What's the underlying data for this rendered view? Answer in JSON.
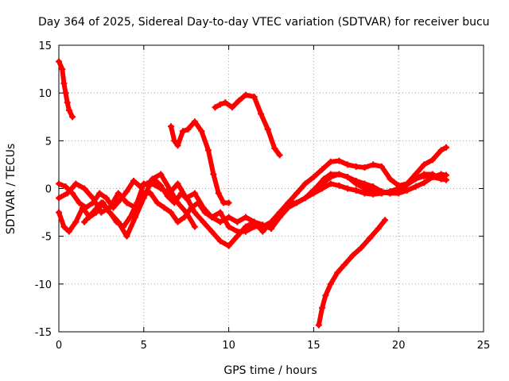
{
  "chart_data": {
    "type": "scatter",
    "title": "Day 364 of 2025, Sidereal Day-to-day VTEC variation (SDTVAR) for receiver bucu",
    "xlabel": "GPS time / hours",
    "ylabel": "SDTVAR / TECUs",
    "xlim": [
      0,
      25
    ],
    "ylim": [
      -15,
      15
    ],
    "xticks": [
      0,
      5,
      10,
      15,
      20,
      25
    ],
    "yticks": [
      -15,
      -10,
      -5,
      0,
      5,
      10,
      15
    ],
    "xtick_labels": [
      "0",
      "5",
      "10",
      "15",
      "20",
      "25"
    ],
    "ytick_labels": [
      "-15",
      "-10",
      "-5",
      "0",
      "5",
      "10",
      "15"
    ],
    "grid": true,
    "marker": "+",
    "color": "#ff0000",
    "series": [
      {
        "name": "trace-1",
        "x": [
          0.0,
          0.2,
          0.3,
          0.4,
          0.5,
          0.6,
          0.8
        ],
        "y": [
          13.3,
          12.5,
          11.0,
          10.0,
          9.0,
          8.2,
          7.5
        ]
      },
      {
        "name": "trace-2",
        "x": [
          6.6,
          6.8,
          7.0,
          7.3,
          7.6,
          8.0,
          8.4,
          8.8,
          9.1,
          9.4,
          9.7,
          10.0
        ],
        "y": [
          6.5,
          5.0,
          4.5,
          6.0,
          6.2,
          7.0,
          6.0,
          4.0,
          1.5,
          -0.5,
          -1.5,
          -1.5
        ]
      },
      {
        "name": "trace-3",
        "x": [
          9.2,
          9.5,
          9.8,
          10.2,
          10.6,
          11.0,
          11.5,
          11.9,
          12.3,
          12.7,
          13.0
        ],
        "y": [
          8.5,
          8.8,
          9.0,
          8.5,
          9.2,
          9.8,
          9.6,
          7.8,
          6.2,
          4.2,
          3.5
        ]
      },
      {
        "name": "trace-4",
        "x": [
          15.3,
          15.5,
          15.7,
          16.0,
          16.4,
          16.8,
          17.3,
          17.8,
          18.3,
          18.8,
          19.2
        ],
        "y": [
          -14.3,
          -12.5,
          -11.2,
          -10.0,
          -8.8,
          -8.0,
          -7.0,
          -6.2,
          -5.2,
          -4.2,
          -3.3
        ]
      },
      {
        "name": "trace-5",
        "x": [
          0.0,
          0.4,
          0.8,
          1.2,
          1.6,
          2.0,
          2.4,
          2.8,
          3.2,
          3.6,
          4.0,
          4.4,
          4.8,
          5.2,
          5.6,
          6.0,
          6.4,
          6.8,
          7.2,
          7.6,
          8.0,
          8.5,
          9.0,
          9.5,
          10.0,
          10.5,
          11.0,
          11.5,
          12.0,
          12.5,
          13.0,
          13.5,
          14.0,
          14.5,
          15.0,
          15.5,
          16.0,
          16.5,
          17.0,
          17.5,
          18.0,
          18.5,
          19.0,
          19.5,
          20.0,
          20.5,
          21.0,
          21.5,
          22.0,
          22.5,
          22.8
        ],
        "y": [
          0.5,
          0.2,
          -0.5,
          -1.5,
          -2.0,
          -1.5,
          -0.5,
          -1.0,
          -2.0,
          -1.2,
          -0.3,
          0.8,
          0.2,
          0.5,
          1.0,
          0.3,
          -0.8,
          -1.5,
          -0.5,
          -1.2,
          -2.5,
          -3.5,
          -4.5,
          -5.5,
          -6.0,
          -5.0,
          -4.0,
          -3.5,
          -3.8,
          -4.2,
          -3.0,
          -2.0,
          -1.5,
          -1.0,
          -0.2,
          0.5,
          1.2,
          1.5,
          1.2,
          0.8,
          0.5,
          0.2,
          -0.3,
          -0.5,
          -0.5,
          -0.2,
          0.2,
          0.6,
          1.2,
          1.5,
          1.4
        ]
      },
      {
        "name": "trace-6",
        "x": [
          0.0,
          0.3,
          0.6,
          1.0,
          1.4,
          1.8,
          2.2,
          2.6,
          3.0,
          3.4,
          3.8,
          4.2,
          4.6,
          5.0,
          5.4,
          5.8,
          6.2,
          6.6,
          7.0,
          7.4,
          7.8,
          8.2,
          8.6,
          9.0,
          9.5,
          10.0,
          10.5,
          11.0,
          11.5,
          12.0,
          12.5,
          13.0,
          13.5,
          14.0,
          14.5,
          15.0,
          15.5,
          16.0,
          16.5,
          17.0,
          17.5,
          18.0,
          18.5,
          19.0,
          19.5,
          20.0,
          20.5,
          21.0,
          21.5,
          22.0,
          22.5
        ],
        "y": [
          -2.5,
          -4.0,
          -4.5,
          -3.5,
          -2.0,
          -3.0,
          -2.5,
          -1.5,
          -2.5,
          -3.5,
          -4.0,
          -3.0,
          -1.5,
          -0.5,
          -0.5,
          -1.5,
          -2.0,
          -2.5,
          -3.5,
          -3.0,
          -2.0,
          -1.5,
          -2.5,
          -3.0,
          -3.5,
          -3.0,
          -3.5,
          -3.0,
          -3.5,
          -4.5,
          -3.5,
          -2.5,
          -1.5,
          -0.5,
          0.5,
          1.2,
          2.0,
          2.8,
          2.9,
          2.5,
          2.3,
          2.2,
          2.5,
          2.3,
          1.0,
          0.3,
          0.5,
          1.0,
          1.5,
          1.5,
          1.0
        ]
      },
      {
        "name": "trace-7",
        "x": [
          0.0,
          0.5,
          1.0,
          1.5,
          2.0,
          2.5,
          3.0,
          3.5,
          4.0,
          4.5,
          5.0,
          5.5,
          6.0,
          6.5,
          7.0,
          7.5,
          8.0,
          8.5,
          9.0,
          9.5,
          10.0,
          10.5,
          11.0,
          11.5,
          12.0,
          12.5,
          13.0,
          13.5,
          14.0,
          14.5,
          15.0,
          15.5,
          16.0,
          16.5,
          17.0,
          17.5,
          18.0,
          18.5,
          19.0,
          19.5,
          20.0,
          20.5,
          21.0,
          21.5,
          22.0,
          22.5,
          22.8
        ],
        "y": [
          -1.0,
          -0.5,
          0.5,
          0.0,
          -1.0,
          -2.5,
          -2.0,
          -0.5,
          -1.5,
          -2.0,
          0.5,
          0.5,
          0.0,
          -0.5,
          0.5,
          -1.0,
          -0.5,
          -2.0,
          -3.0,
          -2.5,
          -4.0,
          -4.5,
          -4.5,
          -4.0,
          -4.0,
          -3.5,
          -2.5,
          -1.5,
          -1.5,
          -1.0,
          -0.5,
          0.0,
          0.5,
          0.3,
          0.0,
          -0.2,
          -0.5,
          -0.6,
          -0.5,
          -0.3,
          0.0,
          0.5,
          1.5,
          2.5,
          3.0,
          4.0,
          4.3
        ]
      },
      {
        "name": "trace-8",
        "x": [
          1.5,
          2.0,
          2.5,
          3.0,
          3.5,
          4.0,
          4.5,
          5.0,
          5.5,
          6.0,
          6.5,
          7.0,
          7.5,
          8.0
        ],
        "y": [
          -3.5,
          -2.5,
          -1.5,
          -2.5,
          -3.5,
          -5.0,
          -3.0,
          -1.0,
          1.0,
          1.5,
          0.0,
          -1.5,
          -2.5,
          -4.0
        ]
      },
      {
        "name": "trace-9",
        "x": [
          14.8,
          15.2,
          15.6,
          16.0,
          16.5,
          17.0,
          17.5,
          18.0,
          18.5,
          19.0,
          19.5,
          20.0,
          20.5,
          21.0,
          21.5,
          22.0,
          22.5,
          22.8
        ],
        "y": [
          -0.5,
          0.2,
          1.0,
          1.5,
          1.5,
          1.2,
          0.5,
          0.0,
          -0.3,
          -0.4,
          -0.5,
          -0.2,
          0.4,
          1.0,
          1.3,
          1.2,
          1.0,
          0.9
        ]
      }
    ]
  }
}
